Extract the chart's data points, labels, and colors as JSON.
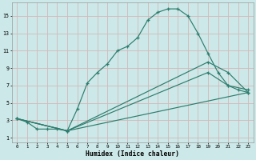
{
  "xlabel": "Humidex (Indice chaleur)",
  "bg_color": "#cce8e8",
  "grid_color": "#d4b8b8",
  "line_color": "#2d7d6e",
  "xlim": [
    -0.5,
    23.5
  ],
  "ylim": [
    0.5,
    16.5
  ],
  "xticks": [
    0,
    1,
    2,
    3,
    4,
    5,
    6,
    7,
    8,
    9,
    10,
    11,
    12,
    13,
    14,
    15,
    16,
    17,
    18,
    19,
    20,
    21,
    22,
    23
  ],
  "yticks": [
    1,
    3,
    5,
    7,
    9,
    11,
    13,
    15
  ],
  "line1_x": [
    0,
    1,
    2,
    3,
    4,
    5,
    6,
    7,
    8,
    9,
    10,
    11,
    12,
    13,
    14,
    15,
    16,
    17,
    18,
    19,
    20,
    21,
    22,
    23
  ],
  "line1_y": [
    3.2,
    2.8,
    2.0,
    2.0,
    2.0,
    1.8,
    4.3,
    7.3,
    8.5,
    9.5,
    11.0,
    11.5,
    12.5,
    14.5,
    15.4,
    15.8,
    15.8,
    15.0,
    13.0,
    10.7,
    8.5,
    7.0,
    6.5,
    6.2
  ],
  "line2_x": [
    0,
    5,
    23
  ],
  "line2_y": [
    3.2,
    1.8,
    6.2
  ],
  "line3_x": [
    0,
    5,
    19,
    21,
    23
  ],
  "line3_y": [
    3.2,
    1.8,
    8.5,
    7.0,
    6.5
  ],
  "line4_x": [
    0,
    5,
    19,
    21,
    23
  ],
  "line4_y": [
    3.2,
    1.8,
    9.7,
    8.5,
    6.2
  ]
}
